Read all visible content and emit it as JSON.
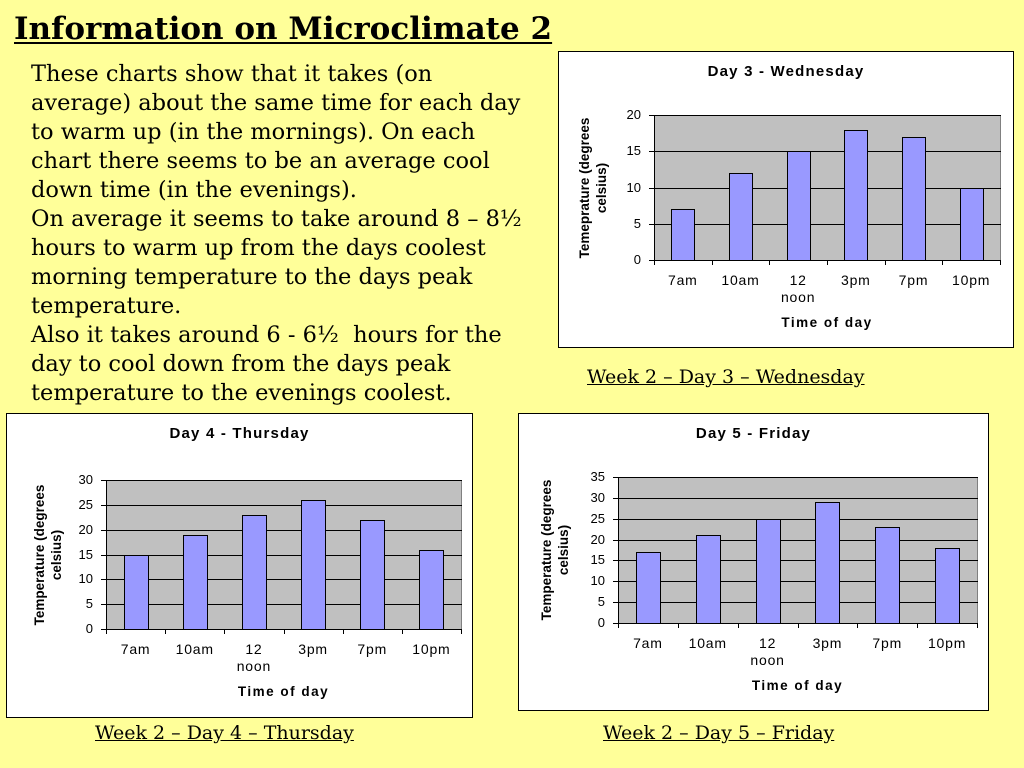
{
  "slide": {
    "title": "Information on Microclimate 2",
    "background_color": "#FFFF99",
    "body_lines": [
      "These charts show that it takes (on",
      "average) about the same time for each day",
      "to warm up (in the mornings). On each",
      "chart there seems to be an average cool",
      "down time (in the evenings).",
      "On average it seems to take around 8 – 8½",
      "hours to warm up from the days coolest",
      "morning temperature to the days peak",
      "temperature.",
      "Also it takes around 6 - 6½  hours for the",
      "day to cool down from the days peak",
      "temperature to the evenings coolest."
    ],
    "captions": {
      "day3": "Week 2 – Day 3 – Wednesday",
      "day4": "Week 2 – Day 4 – Thursday",
      "day5": "Week 2 – Day 5 – Friday"
    }
  },
  "chart_data": [
    {
      "type": "bar",
      "title": "Day 3 - Wednesday",
      "categories": [
        "7am",
        "10am",
        "12 noon",
        "3pm",
        "7pm",
        "10pm"
      ],
      "values": [
        7,
        12,
        15,
        18,
        17,
        10
      ],
      "xlabel": "Time of day",
      "ylabel": "Temeprature (degrees celsius)",
      "ylim": [
        0,
        20
      ],
      "yticks": [
        0,
        5,
        10,
        15,
        20
      ],
      "grid": true,
      "bar_color": "#9999FF",
      "plot_background": "#C0C0C0"
    },
    {
      "type": "bar",
      "title": "Day 4 - Thursday",
      "categories": [
        "7am",
        "10am",
        "12 noon",
        "3pm",
        "7pm",
        "10pm"
      ],
      "values": [
        15,
        19,
        23,
        26,
        22,
        16
      ],
      "xlabel": "Time of day",
      "ylabel": "Temperature (degrees celsius)",
      "ylim": [
        0,
        30
      ],
      "yticks": [
        0,
        5,
        10,
        15,
        20,
        25,
        30
      ],
      "grid": true,
      "bar_color": "#9999FF",
      "plot_background": "#C0C0C0"
    },
    {
      "type": "bar",
      "title": "Day 5 - Friday",
      "categories": [
        "7am",
        "10am",
        "12 noon",
        "3pm",
        "7pm",
        "10pm"
      ],
      "values": [
        17,
        21,
        25,
        29,
        23,
        18
      ],
      "xlabel": "Time of day",
      "ylabel": "Temperature (degrees celsius)",
      "ylim": [
        0,
        35
      ],
      "yticks": [
        0,
        5,
        10,
        15,
        20,
        25,
        30,
        35
      ],
      "grid": true,
      "bar_color": "#9999FF",
      "plot_background": "#C0C0C0"
    }
  ]
}
